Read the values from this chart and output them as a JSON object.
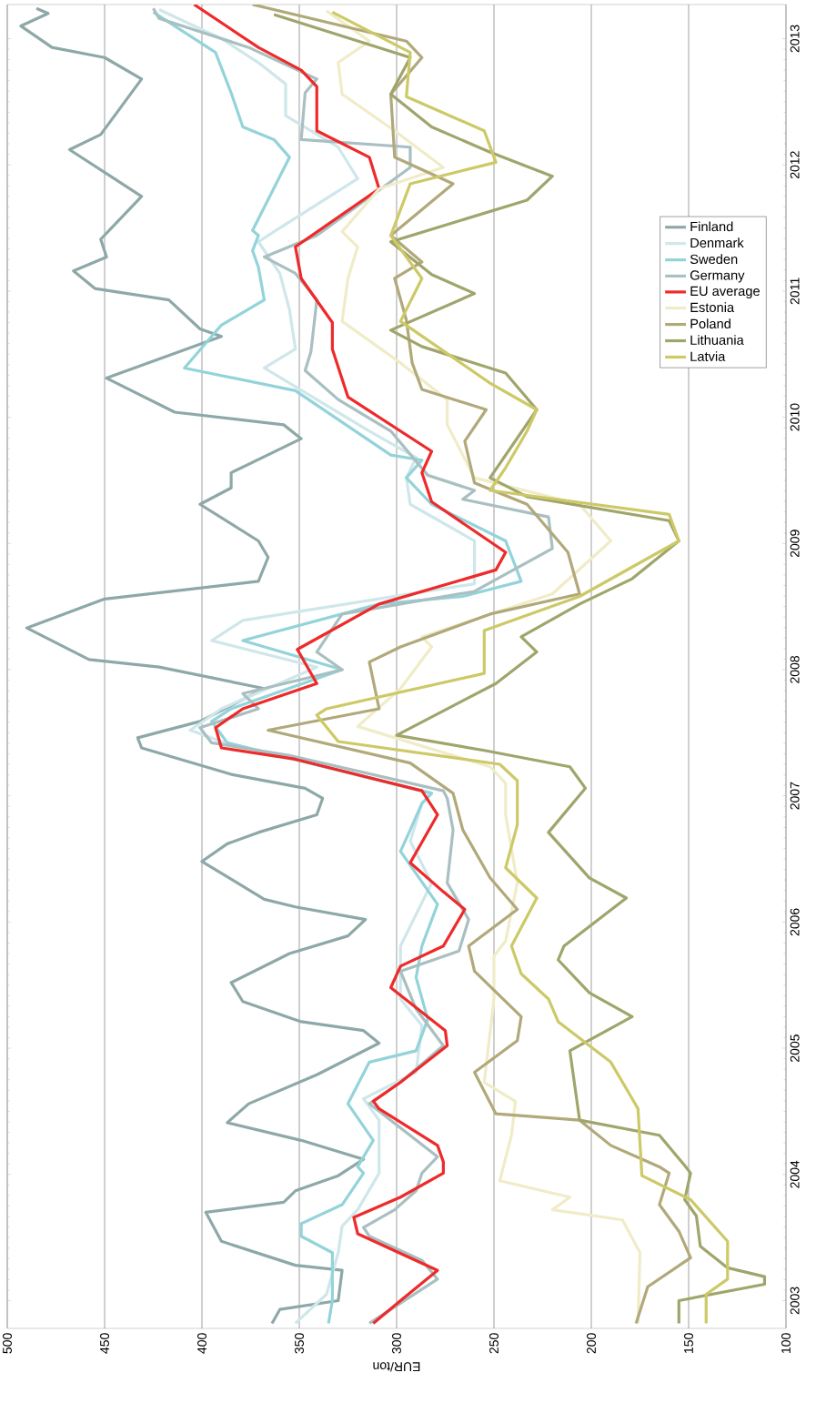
{
  "chart_data": {
    "type": "line",
    "xlabel": "EUR/ton",
    "xlim": [
      500,
      100
    ],
    "xticks": [
      500,
      450,
      400,
      350,
      300,
      250,
      200,
      150,
      100
    ],
    "ylim": [
      2002.78,
      2013.27
    ],
    "yticks": [
      2003,
      2004,
      2005,
      2006,
      2007,
      2008,
      2009,
      2010,
      2011,
      2012,
      2013
    ],
    "grid": "x",
    "legend": "top right",
    "series": [
      {
        "name": "Finland",
        "color": "#8ea8a8",
        "values": [
          2002.82,
          2002.93,
          2003.0,
          2003.24,
          2003.28,
          2003.47,
          2003.7,
          2003.78,
          2003.87,
          2003.99,
          2004.12,
          2004.27,
          2004.41,
          2004.56,
          2004.79,
          2005.04,
          2005.14,
          2005.21,
          2005.37,
          2005.52,
          2005.75,
          2005.89,
          2006.02,
          2006.12,
          2006.18,
          2006.48,
          2006.62,
          2006.71,
          2006.85,
          2006.98,
          2007.06,
          2007.17,
          2007.38,
          2007.46,
          2007.59,
          2007.85,
          2008.02,
          2008.08,
          2008.33,
          2008.56,
          2008.7,
          2008.89,
          2009.02,
          2009.31,
          2009.44,
          2009.56,
          2009.83,
          2009.94,
          2010.04,
          2010.31,
          2010.64,
          2010.7,
          2010.93,
          2011.02,
          2011.16,
          2011.27,
          2011.41,
          2011.75,
          2011.89,
          2012.12,
          2012.24,
          2012.68,
          2012.85,
          2012.93,
          2013.1,
          2013.2,
          2013.24
        ],
        "x": [
          364,
          360,
          330,
          328,
          352,
          390,
          398,
          358,
          352,
          330,
          317,
          349,
          387,
          376,
          341,
          309,
          317,
          349,
          379,
          385,
          355,
          325,
          316,
          352,
          368,
          400,
          387,
          371,
          341,
          338,
          347,
          385,
          431,
          433,
          401,
          368,
          422,
          458,
          490,
          450,
          371,
          366,
          371,
          401,
          385,
          385,
          349,
          358,
          414,
          449,
          390,
          401,
          417,
          455,
          466,
          449,
          452,
          431,
          445,
          468,
          452,
          431,
          450,
          477,
          493,
          479,
          485
        ]
      },
      {
        "name": "Denmark",
        "color": "#cfe7ea",
        "values": [
          2002.82,
          2003.05,
          2003.38,
          2003.59,
          2003.72,
          2004.01,
          2004.43,
          2004.6,
          2004.81,
          2005.18,
          2005.39,
          2005.81,
          2006.31,
          2006.64,
          2006.94,
          2007.02,
          2007.43,
          2007.52,
          2007.69,
          2008.02,
          2008.23,
          2008.39,
          2008.68,
          2009.02,
          2009.31,
          2009.52,
          2009.68,
          2009.89,
          2010.39,
          2010.54,
          2010.85,
          2011.14,
          2011.39,
          2011.47,
          2011.89,
          2012.14,
          2012.39,
          2012.64,
          2012.81,
          2013.0,
          2013.23
        ],
        "x": [
          352,
          336,
          330,
          328,
          320,
          309,
          309,
          317,
          290,
          287,
          298,
          298,
          282,
          293,
          287,
          282,
          390,
          406,
          390,
          341,
          395,
          379,
          260,
          260,
          293,
          295,
          290,
          314,
          368,
          352,
          355,
          360,
          371,
          363,
          320,
          330,
          357,
          357,
          371,
          390,
          422
        ]
      },
      {
        "name": "Sweden",
        "color": "#93d3da",
        "values": [
          2002.82,
          2003.0,
          2003.38,
          2003.51,
          2003.61,
          2003.76,
          2004.01,
          2004.06,
          2004.27,
          2004.56,
          2004.89,
          2004.98,
          2005.23,
          2005.56,
          2005.81,
          2006.14,
          2006.56,
          2006.73,
          2006.94,
          2007.02,
          2007.42,
          2007.59,
          2007.69,
          2008.0,
          2008.23,
          2008.52,
          2008.58,
          2008.7,
          2009.02,
          2009.31,
          2009.52,
          2009.66,
          2009.7,
          2010.21,
          2010.39,
          2010.73,
          2010.93,
          2011.19,
          2011.32,
          2011.44,
          2011.48,
          2012.06,
          2012.2,
          2012.3,
          2012.57,
          2012.89,
          2013.21
        ],
        "x": [
          335,
          333,
          333,
          349,
          349,
          328,
          317,
          320,
          312,
          325,
          314,
          290,
          284,
          290,
          287,
          279,
          298,
          293,
          287,
          282,
          387,
          395,
          385,
          328,
          379,
          309,
          266,
          236,
          244,
          282,
          295,
          287,
          303,
          352,
          409,
          390,
          368,
          371,
          374,
          371,
          374,
          355,
          363,
          379,
          385,
          393,
          425
        ]
      },
      {
        "name": "Germany",
        "color": "#a9bfc1",
        "values": [
          2002.82,
          2003.17,
          2003.32,
          2003.51,
          2003.58,
          2003.72,
          2003.87,
          2004.01,
          2004.14,
          2004.56,
          2004.73,
          2005.02,
          2005.31,
          2005.61,
          2005.77,
          2006.02,
          2006.31,
          2006.73,
          2006.98,
          2007.04,
          2007.32,
          2007.42,
          2007.54,
          2007.69,
          2007.81,
          2008.0,
          2008.14,
          2008.44,
          2008.62,
          2008.96,
          2009.21,
          2009.35,
          2009.42,
          2009.54,
          2009.89,
          2010.14,
          2010.37,
          2010.52,
          2010.93,
          2011.14,
          2011.27,
          2011.44,
          2011.98,
          2012.14,
          2012.2,
          2012.57,
          2012.68,
          2012.93,
          2013.16,
          2013.24
        ],
        "x": [
          314,
          279,
          287,
          314,
          317,
          301,
          290,
          287,
          279,
          314,
          298,
          276,
          290,
          298,
          268,
          263,
          274,
          271,
          274,
          276,
          355,
          395,
          401,
          371,
          379,
          328,
          341,
          328,
          260,
          220,
          222,
          266,
          260,
          284,
          303,
          330,
          347,
          344,
          341,
          352,
          368,
          341,
          293,
          293,
          349,
          347,
          341,
          376,
          422,
          425
        ]
      },
      {
        "name": "EU average",
        "color": "#ee2a2a",
        "values": [
          2002.82,
          2003.0,
          2003.24,
          2003.53,
          2003.66,
          2003.82,
          2004.01,
          2004.1,
          2004.23,
          2004.52,
          2004.58,
          2004.73,
          2005.02,
          2005.14,
          2005.48,
          2005.65,
          2005.81,
          2006.1,
          2006.24,
          2006.47,
          2006.85,
          2007.04,
          2007.29,
          2007.38,
          2007.54,
          2007.69,
          2007.89,
          2008.16,
          2008.52,
          2008.79,
          2008.93,
          2009.33,
          2009.56,
          2009.73,
          2010.16,
          2010.54,
          2010.75,
          2011.1,
          2011.35,
          2011.81,
          2012.06,
          2012.27,
          2012.62,
          2012.75,
          2012.93,
          2013.27
        ],
        "x": [
          312,
          298,
          279,
          320,
          322,
          298,
          276,
          276,
          279,
          309,
          312,
          298,
          274,
          275,
          303,
          298,
          276,
          265,
          276,
          293,
          279,
          287,
          352,
          390,
          393,
          379,
          341,
          351,
          309,
          249,
          244,
          282,
          287,
          282,
          325,
          333,
          333,
          349,
          352,
          309,
          314,
          341,
          341,
          349,
          371,
          404
        ]
      },
      {
        "name": "Estonia",
        "color": "#f0ecc8",
        "values": [
          2002.82,
          2003.38,
          2003.64,
          2003.72,
          2003.82,
          2003.95,
          2004.31,
          2004.58,
          2004.73,
          2005.39,
          2005.73,
          2005.85,
          2006.31,
          2006.85,
          2007.1,
          2007.23,
          2007.55,
          2007.85,
          2008.18,
          2008.26,
          2008.6,
          2009.02,
          2009.31,
          2009.52,
          2009.94,
          2010.14,
          2010.43,
          2010.76,
          2011.1,
          2011.35,
          2011.47,
          2011.81,
          2011.98,
          2012.27,
          2012.56,
          2012.81,
          2012.98,
          2013.22
        ],
        "x": [
          176,
          175,
          184,
          220,
          211,
          247,
          241,
          239,
          255,
          250,
          250,
          244,
          238,
          244,
          244,
          252,
          320,
          298,
          282,
          287,
          220,
          190,
          206,
          260,
          274,
          274,
          298,
          328,
          325,
          320,
          328,
          309,
          276,
          301,
          328,
          330,
          314,
          336
        ]
      },
      {
        "name": "Poland",
        "color": "#b1a97a",
        "values": [
          2002.82,
          2003.11,
          2003.34,
          2003.55,
          2003.76,
          2004.01,
          2004.06,
          2004.23,
          2004.43,
          2004.48,
          2004.81,
          2005.06,
          2005.25,
          2005.61,
          2005.81,
          2006.1,
          2006.35,
          2006.73,
          2007.02,
          2007.26,
          2007.52,
          2007.69,
          2008.06,
          2008.18,
          2008.44,
          2008.6,
          2008.93,
          2009.31,
          2009.48,
          2009.81,
          2010.06,
          2010.22,
          2010.43,
          2010.77,
          2011.1,
          2011.23,
          2011.44,
          2011.85,
          2012.06,
          2012.56,
          2012.85,
          2012.98,
          2013.27
        ],
        "x": [
          177,
          171,
          149,
          155,
          165,
          160,
          165,
          190,
          206,
          249,
          260,
          238,
          236,
          260,
          263,
          238,
          252,
          266,
          271,
          293,
          366,
          309,
          314,
          298,
          252,
          206,
          212,
          233,
          260,
          265,
          254,
          287,
          292,
          295,
          301,
          287,
          303,
          271,
          301,
          303,
          287,
          295,
          374
        ]
      },
      {
        "name": "Lithuania",
        "color": "#a0a56b",
        "values": [
          2002.82,
          2003.0,
          2003.13,
          2003.19,
          2003.26,
          2003.43,
          2003.67,
          2003.8,
          2004.01,
          2004.07,
          2004.31,
          2004.43,
          2004.98,
          2005.25,
          2005.44,
          2005.7,
          2005.81,
          2006.19,
          2006.35,
          2006.71,
          2007.06,
          2007.23,
          2007.36,
          2007.48,
          2007.89,
          2008.14,
          2008.26,
          2008.52,
          2008.72,
          2009.02,
          2009.18,
          2009.37,
          2009.52,
          2010.06,
          2010.35,
          2010.56,
          2010.69,
          2010.98,
          2011.13,
          2011.39,
          2011.72,
          2011.91,
          2012.1,
          2012.3,
          2012.56,
          2012.85,
          2013.19
        ],
        "x": [
          155,
          155,
          111,
          111,
          130,
          144,
          146,
          152,
          149,
          152,
          165,
          206,
          211,
          179,
          201,
          217,
          214,
          182,
          201,
          222,
          203,
          211,
          255,
          300,
          249,
          228,
          236,
          206,
          179,
          155,
          160,
          233,
          252,
          228,
          244,
          287,
          303,
          260,
          282,
          303,
          233,
          220,
          252,
          282,
          303,
          293,
          363
        ]
      },
      {
        "name": "Latvia",
        "color": "#cdc967",
        "values": [
          2002.82,
          2003.05,
          2003.17,
          2003.47,
          2003.8,
          2003.99,
          2004.52,
          2004.6,
          2004.89,
          2005.21,
          2005.39,
          2005.59,
          2005.81,
          2006.19,
          2006.43,
          2006.77,
          2007.12,
          2007.25,
          2007.43,
          2007.64,
          2007.69,
          2007.97,
          2008.31,
          2008.58,
          2009.02,
          2009.23,
          2009.42,
          2009.6,
          2009.89,
          2010.06,
          2010.27,
          2010.76,
          2011.1,
          2011.44,
          2011.85,
          2012.02,
          2012.27,
          2012.54,
          2012.89,
          2013.21
        ],
        "x": [
          141,
          141,
          130,
          130,
          149,
          174,
          176,
          179,
          190,
          217,
          222,
          236,
          241,
          228,
          244,
          238,
          238,
          247,
          330,
          341,
          336,
          255,
          255,
          206,
          155,
          160,
          252,
          244,
          233,
          228,
          252,
          298,
          287,
          303,
          293,
          249,
          255,
          295,
          293,
          333
        ]
      }
    ]
  }
}
